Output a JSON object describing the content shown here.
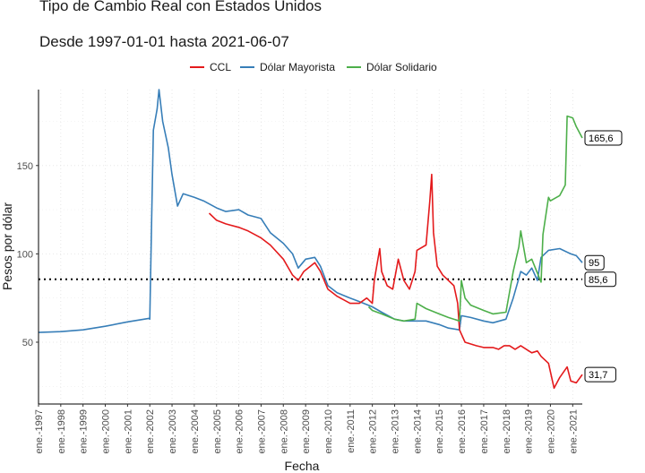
{
  "chart_data": {
    "type": "line",
    "title": "Tipo de Cambio Real con Estados Unidos",
    "subtitle": "Desde 1997-01-01 hasta 2021-06-07",
    "xlabel": "Fecha",
    "ylabel": "Pesos por dólar",
    "x_range": [
      "1997-01-01",
      "2021-06-07"
    ],
    "ylim": [
      15,
      193
    ],
    "y_ticks": [
      50,
      100,
      150
    ],
    "x_ticks": [
      "ene.-1997",
      "ene.-1998",
      "ene.-1999",
      "ene.-2000",
      "ene.-2001",
      "ene.-2002",
      "ene.-2003",
      "ene.-2004",
      "ene.-2005",
      "ene.-2006",
      "ene.-2007",
      "ene.-2008",
      "ene.-2009",
      "ene.-2010",
      "ene.-2011",
      "ene.-2012",
      "ene.-2013",
      "ene.-2014",
      "ene.-2015",
      "ene.-2016",
      "ene.-2017",
      "ene.-2018",
      "ene.-2019",
      "ene.-2020",
      "ene.-2021"
    ],
    "legend_position": "top",
    "grid": true,
    "reference_line": {
      "value": 85.6,
      "style": "dotted"
    },
    "series": [
      {
        "name": "CCL",
        "color": "#e41a1c",
        "points": [
          [
            "2004-09-01",
            123
          ],
          [
            "2005-01-01",
            119
          ],
          [
            "2005-06-01",
            117
          ],
          [
            "2006-01-01",
            115
          ],
          [
            "2006-06-01",
            113
          ],
          [
            "2007-01-01",
            109
          ],
          [
            "2007-06-01",
            105
          ],
          [
            "2008-01-01",
            97
          ],
          [
            "2008-06-01",
            88
          ],
          [
            "2008-09-01",
            85
          ],
          [
            "2008-12-01",
            90
          ],
          [
            "2009-06-01",
            95
          ],
          [
            "2009-09-01",
            90
          ],
          [
            "2010-01-01",
            80
          ],
          [
            "2010-06-01",
            76
          ],
          [
            "2011-01-01",
            72
          ],
          [
            "2011-06-01",
            72
          ],
          [
            "2011-10-01",
            75
          ],
          [
            "2012-01-01",
            72
          ],
          [
            "2012-02-01",
            85
          ],
          [
            "2012-05-01",
            103
          ],
          [
            "2012-06-01",
            90
          ],
          [
            "2012-09-01",
            82
          ],
          [
            "2012-12-01",
            80
          ],
          [
            "2013-03-01",
            97
          ],
          [
            "2013-06-01",
            85
          ],
          [
            "2013-09-01",
            80
          ],
          [
            "2013-12-01",
            90
          ],
          [
            "2014-01-01",
            102
          ],
          [
            "2014-06-01",
            105
          ],
          [
            "2014-08-01",
            130
          ],
          [
            "2014-09-01",
            145
          ],
          [
            "2014-10-01",
            112
          ],
          [
            "2014-12-01",
            93
          ],
          [
            "2015-03-01",
            88
          ],
          [
            "2015-06-01",
            85
          ],
          [
            "2015-09-01",
            82
          ],
          [
            "2015-11-01",
            72
          ],
          [
            "2015-12-01",
            57
          ],
          [
            "2016-03-01",
            50
          ],
          [
            "2016-09-01",
            48
          ],
          [
            "2017-01-01",
            47
          ],
          [
            "2017-06-01",
            47
          ],
          [
            "2017-09-01",
            46
          ],
          [
            "2017-12-01",
            48
          ],
          [
            "2018-03-01",
            48
          ],
          [
            "2018-06-01",
            46
          ],
          [
            "2018-09-01",
            48
          ],
          [
            "2018-12-01",
            46
          ],
          [
            "2019-03-01",
            44
          ],
          [
            "2019-06-01",
            45
          ],
          [
            "2019-08-01",
            42
          ],
          [
            "2019-12-01",
            38
          ],
          [
            "2020-03-01",
            24
          ],
          [
            "2020-06-01",
            30
          ],
          [
            "2020-10-01",
            36
          ],
          [
            "2020-12-01",
            28
          ],
          [
            "2021-03-01",
            27
          ],
          [
            "2021-06-07",
            31.7
          ]
        ]
      },
      {
        "name": "Dólar Mayorista",
        "color": "#377eb8",
        "points": [
          [
            "1997-01-01",
            55.5
          ],
          [
            "1998-01-01",
            56
          ],
          [
            "1999-01-01",
            57
          ],
          [
            "2000-01-01",
            59
          ],
          [
            "2001-01-01",
            61.5
          ],
          [
            "2001-12-15",
            63.5
          ],
          [
            "2002-01-01",
            63
          ],
          [
            "2002-02-01",
            120
          ],
          [
            "2002-03-01",
            170
          ],
          [
            "2002-05-01",
            182
          ],
          [
            "2002-06-01",
            193
          ],
          [
            "2002-08-01",
            175
          ],
          [
            "2002-11-01",
            160
          ],
          [
            "2003-01-01",
            145
          ],
          [
            "2003-04-01",
            127
          ],
          [
            "2003-07-01",
            134
          ],
          [
            "2004-01-01",
            132
          ],
          [
            "2004-06-01",
            130
          ],
          [
            "2005-01-01",
            126
          ],
          [
            "2005-06-01",
            124
          ],
          [
            "2006-01-01",
            125
          ],
          [
            "2006-06-01",
            122
          ],
          [
            "2007-01-01",
            120
          ],
          [
            "2007-06-01",
            112
          ],
          [
            "2008-01-01",
            106
          ],
          [
            "2008-06-01",
            100
          ],
          [
            "2008-09-01",
            92
          ],
          [
            "2009-01-01",
            97
          ],
          [
            "2009-06-01",
            98
          ],
          [
            "2009-09-01",
            93
          ],
          [
            "2010-01-01",
            82
          ],
          [
            "2010-06-01",
            78
          ],
          [
            "2011-01-01",
            75
          ],
          [
            "2011-06-01",
            73
          ],
          [
            "2012-01-01",
            70
          ],
          [
            "2012-06-01",
            67
          ],
          [
            "2013-01-01",
            63
          ],
          [
            "2013-06-01",
            62
          ],
          [
            "2014-01-01",
            62
          ],
          [
            "2014-06-01",
            62
          ],
          [
            "2015-01-01",
            60
          ],
          [
            "2015-06-01",
            58
          ],
          [
            "2015-12-01",
            57
          ],
          [
            "2016-01-01",
            65
          ],
          [
            "2016-06-01",
            64
          ],
          [
            "2017-01-01",
            62
          ],
          [
            "2017-06-01",
            61
          ],
          [
            "2018-01-01",
            63
          ],
          [
            "2018-05-01",
            75
          ],
          [
            "2018-09-01",
            90
          ],
          [
            "2018-12-01",
            88
          ],
          [
            "2019-03-01",
            92
          ],
          [
            "2019-06-01",
            85
          ],
          [
            "2019-08-01",
            98
          ],
          [
            "2019-12-01",
            102
          ],
          [
            "2020-06-01",
            103
          ],
          [
            "2020-12-01",
            100
          ],
          [
            "2021-03-01",
            99
          ],
          [
            "2021-06-07",
            95
          ]
        ]
      },
      {
        "name": "Dólar Solidario",
        "color": "#4daf4a",
        "points": [
          [
            "2011-11-01",
            70
          ],
          [
            "2012-01-01",
            68
          ],
          [
            "2012-06-01",
            66
          ],
          [
            "2013-01-01",
            63
          ],
          [
            "2013-06-01",
            62
          ],
          [
            "2013-12-01",
            63
          ],
          [
            "2014-01-01",
            72
          ],
          [
            "2014-06-01",
            69
          ],
          [
            "2015-01-01",
            66
          ],
          [
            "2015-06-01",
            64
          ],
          [
            "2015-12-01",
            62
          ],
          [
            "2016-01-01",
            85
          ],
          [
            "2016-03-01",
            75
          ],
          [
            "2016-06-01",
            71
          ],
          [
            "2017-01-01",
            68
          ],
          [
            "2017-06-01",
            66
          ],
          [
            "2018-01-01",
            67
          ],
          [
            "2018-05-01",
            90
          ],
          [
            "2018-08-01",
            104
          ],
          [
            "2018-09-01",
            113
          ],
          [
            "2018-12-01",
            95
          ],
          [
            "2019-03-01",
            97
          ],
          [
            "2019-08-01",
            84
          ],
          [
            "2019-09-01",
            111
          ],
          [
            "2019-12-01",
            132
          ],
          [
            "2020-01-01",
            130
          ],
          [
            "2020-06-01",
            133
          ],
          [
            "2020-09-01",
            139
          ],
          [
            "2020-10-01",
            178
          ],
          [
            "2021-01-01",
            177
          ],
          [
            "2021-03-01",
            172
          ],
          [
            "2021-06-07",
            165.6
          ]
        ]
      }
    ],
    "end_labels": [
      {
        "text": "165,6",
        "value": 165.6
      },
      {
        "text": "95",
        "value": 95
      },
      {
        "text": "85,6",
        "value": 85.6
      },
      {
        "text": "31,7",
        "value": 31.7
      }
    ]
  }
}
